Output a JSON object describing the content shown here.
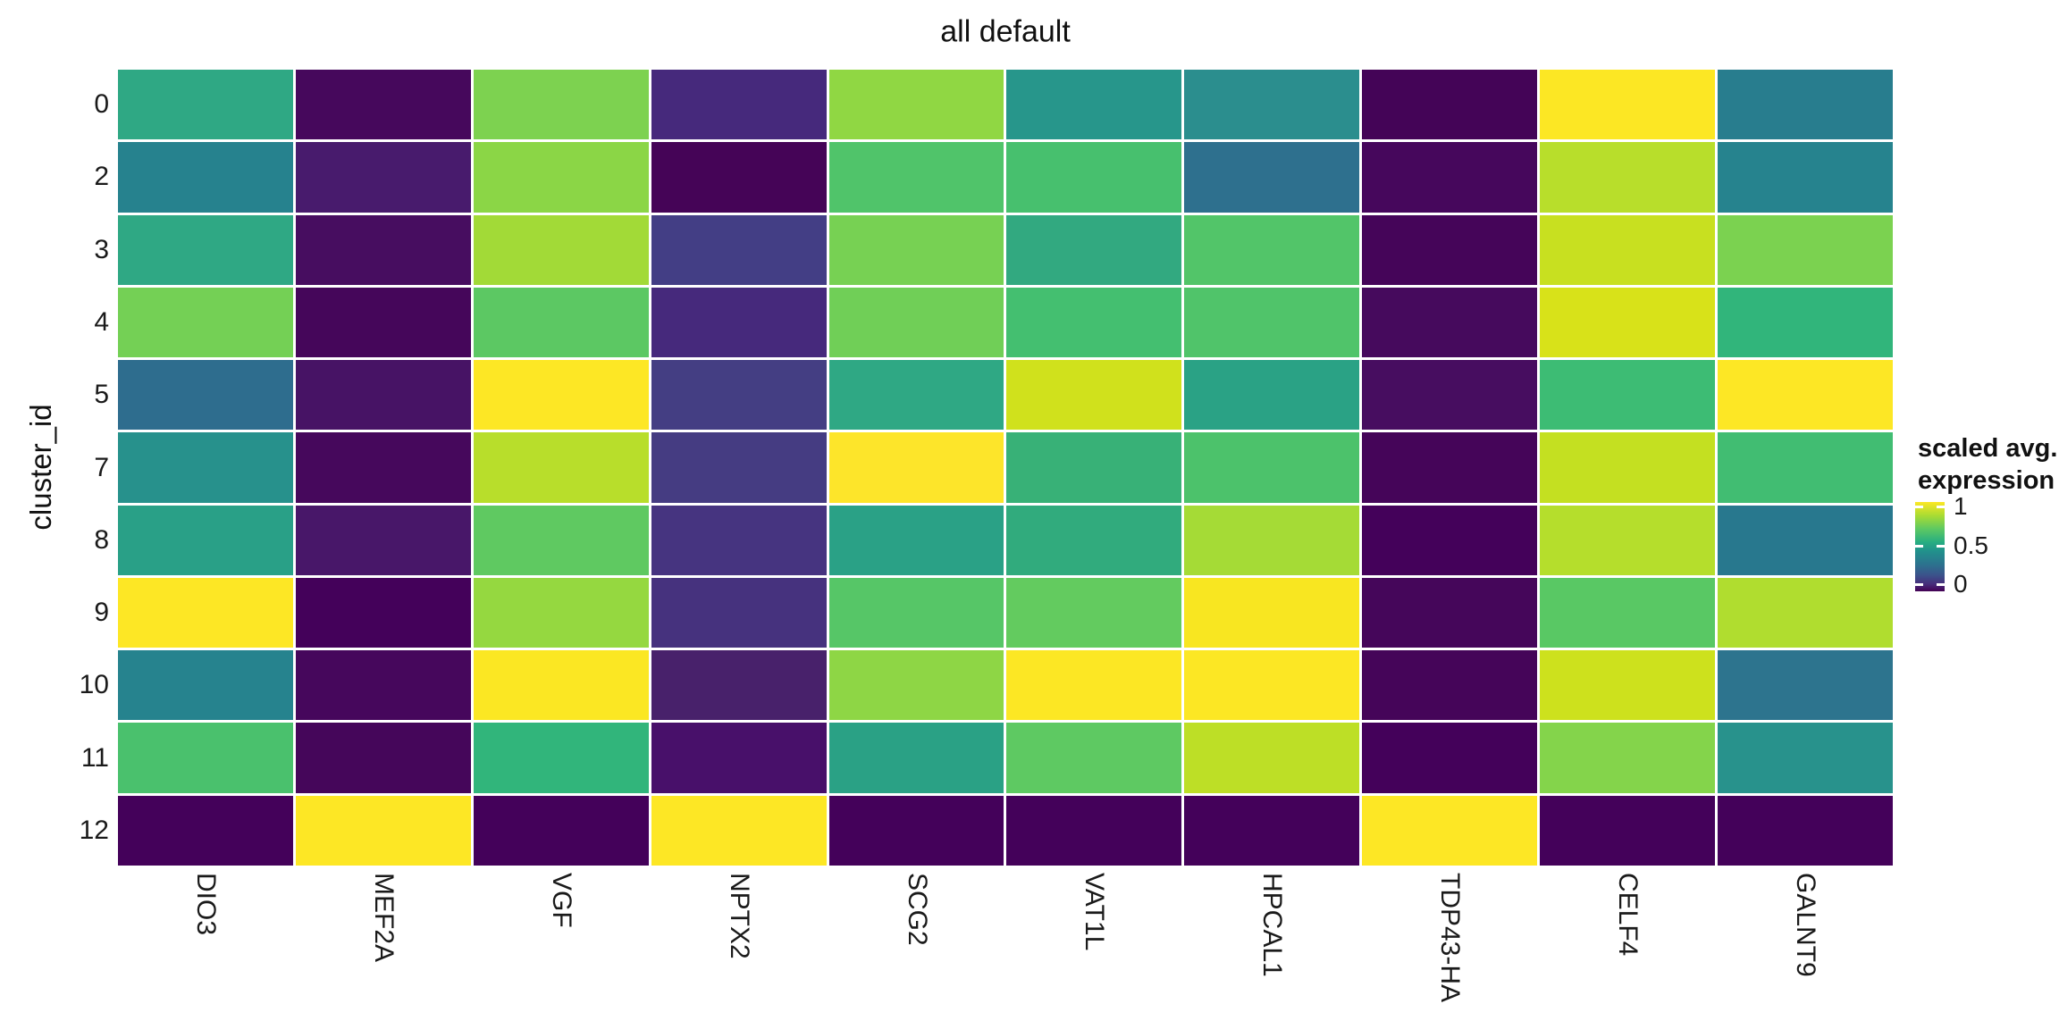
{
  "chart_data": {
    "type": "heatmap",
    "title": "all default",
    "xlabel": "",
    "ylabel": "cluster_id",
    "x_categories": [
      "DIO3",
      "MEF2A",
      "VGF",
      "NPTX2",
      "SCG2",
      "VAT1L",
      "HPCAL1",
      "TDP43-HA",
      "CELF4",
      "GALNT9"
    ],
    "y_categories": [
      "0",
      "2",
      "3",
      "4",
      "5",
      "7",
      "8",
      "9",
      "10",
      "11",
      "12"
    ],
    "legend": {
      "title_line1": "scaled avg.",
      "title_line2": "expression",
      "ticks": [
        "1",
        "0.5",
        "0"
      ],
      "colormap": "viridis",
      "color_high": "#fde725",
      "color_mid": "#21918c",
      "color_low": "#440154"
    },
    "value_range": [
      0,
      1
    ],
    "grid_gap_color": "#ffffff",
    "values": [
      [
        0.62,
        0.03,
        0.81,
        0.12,
        0.86,
        0.56,
        0.52,
        0.01,
        1.0,
        0.43
      ],
      [
        0.45,
        0.07,
        0.85,
        0.0,
        0.73,
        0.71,
        0.36,
        0.02,
        0.91,
        0.46
      ],
      [
        0.62,
        0.04,
        0.88,
        0.2,
        0.81,
        0.63,
        0.73,
        0.01,
        0.93,
        0.82
      ],
      [
        0.8,
        0.02,
        0.75,
        0.12,
        0.79,
        0.7,
        0.72,
        0.03,
        0.95,
        0.66
      ],
      [
        0.35,
        0.05,
        1.0,
        0.2,
        0.62,
        0.94,
        0.6,
        0.04,
        0.68,
        1.0
      ],
      [
        0.52,
        0.03,
        0.91,
        0.19,
        0.99,
        0.66,
        0.72,
        0.01,
        0.92,
        0.7
      ],
      [
        0.59,
        0.06,
        0.76,
        0.16,
        0.6,
        0.63,
        0.88,
        0.0,
        0.91,
        0.41
      ],
      [
        1.0,
        0.0,
        0.87,
        0.15,
        0.74,
        0.77,
        0.99,
        0.02,
        0.75,
        0.9
      ],
      [
        0.46,
        0.02,
        1.0,
        0.09,
        0.86,
        1.0,
        1.0,
        0.01,
        0.94,
        0.38
      ],
      [
        0.71,
        0.02,
        0.66,
        0.05,
        0.6,
        0.76,
        0.92,
        0.0,
        0.84,
        0.53
      ],
      [
        0.0,
        1.0,
        0.0,
        1.0,
        0.0,
        0.0,
        0.0,
        1.0,
        0.0,
        0.0
      ]
    ],
    "colors": [
      [
        "#2fa884",
        "#46085c",
        "#7dd250",
        "#46297c",
        "#90d743",
        "#27968b",
        "#2b8e8e",
        "#440457",
        "#fce724",
        "#287d8e"
      ],
      [
        "#26828e",
        "#481b6d",
        "#8bd646",
        "#450457",
        "#50c46a",
        "#47c06e",
        "#2e708e",
        "#46075c",
        "#b8de2b",
        "#26838e"
      ],
      [
        "#2fa884",
        "#470d60",
        "#a2da37",
        "#433e85",
        "#77d153",
        "#32a980",
        "#52c569",
        "#450559",
        "#c8e020",
        "#7bd250"
      ],
      [
        "#74d055",
        "#45065a",
        "#5cc863",
        "#46297c",
        "#70cf57",
        "#44bf70",
        "#50c46a",
        "#460a5d",
        "#d8e219",
        "#31b57b"
      ],
      [
        "#2e6d8e",
        "#471365",
        "#fde725",
        "#443e83",
        "#2fa884",
        "#d0e11c",
        "#2aa285",
        "#470d60",
        "#3dbc74",
        "#fde725"
      ],
      [
        "#27918c",
        "#46085c",
        "#b8de2b",
        "#453c82",
        "#fde52a",
        "#38b177",
        "#4cc26b",
        "#450559",
        "#c4e021",
        "#41bd72"
      ],
      [
        "#29a087",
        "#481769",
        "#5fc961",
        "#463480",
        "#2aa186",
        "#31ab7d",
        "#a5db36",
        "#44015a",
        "#b5de2c",
        "#28788e"
      ],
      [
        "#fde725",
        "#44015a",
        "#95d840",
        "#46327e",
        "#56c667",
        "#63cb5f",
        "#f8e621",
        "#45065a",
        "#59c864",
        "#b0dd2f"
      ],
      [
        "#26838e",
        "#46075c",
        "#fbe723",
        "#48216b",
        "#8ed645",
        "#fce724",
        "#fce724",
        "#450559",
        "#cde11d",
        "#2d748e"
      ],
      [
        "#4ac16d",
        "#45065a",
        "#31b57b",
        "#48106a",
        "#2aa185",
        "#5ec962",
        "#bddf26",
        "#44015a",
        "#84d44b",
        "#28928c"
      ],
      [
        "#44015a",
        "#fde725",
        "#44015a",
        "#fde725",
        "#44015a",
        "#44015a",
        "#44015a",
        "#fde725",
        "#44015a",
        "#44015a"
      ]
    ]
  }
}
